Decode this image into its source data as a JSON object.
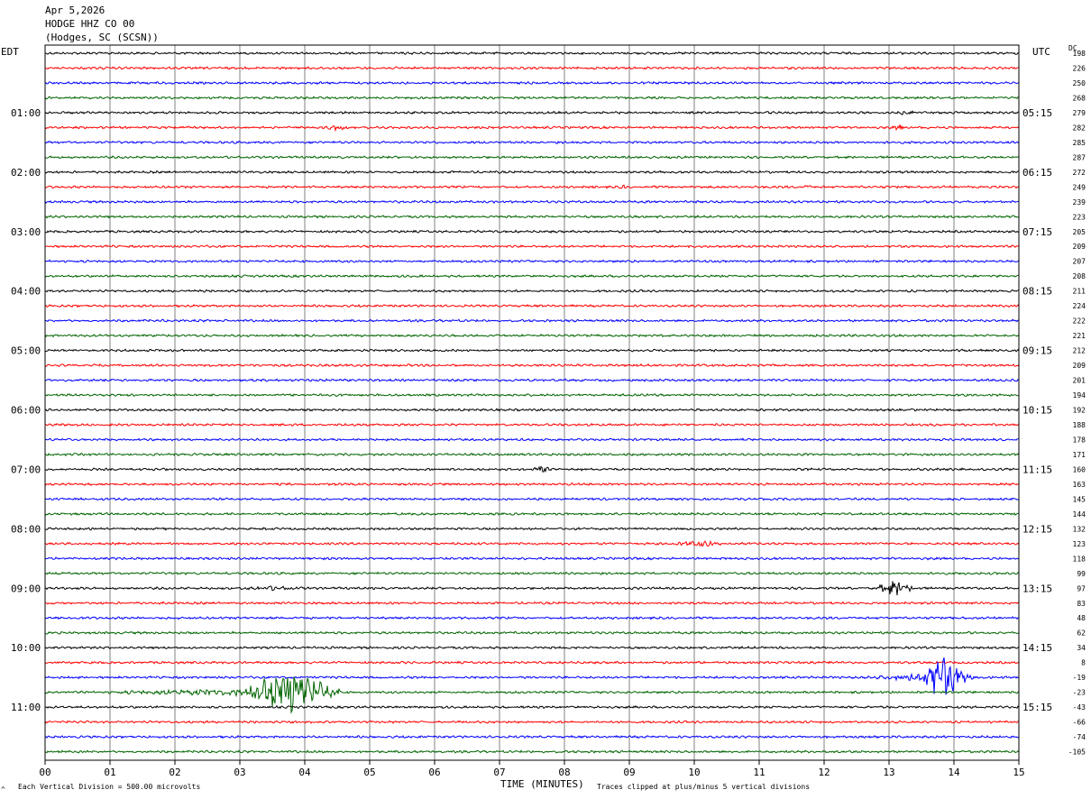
{
  "header": {
    "date": "Apr 5,2026",
    "channel": "HODGE HHZ CO 00",
    "location": "(Hodges, SC (SCSN))"
  },
  "left_zone": "EDT",
  "right_zone": "UTC",
  "dc_header": "DC",
  "footer": {
    "scale": "Each Vertical Division =  500.00 microvolts",
    "clip": "Traces clipped at plus/minus 5 vertical divisions",
    "corner_mark": "^"
  },
  "colors": {
    "trace_cycle": [
      "#000000",
      "#ff0000",
      "#0000ff",
      "#006400"
    ],
    "grid": "#808080",
    "frame": "#000000"
  },
  "chart_data": {
    "type": "line",
    "subtype": "helicorder",
    "xlabel": "TIME (MINUTES)",
    "xlim": [
      0,
      15
    ],
    "x_ticks": [
      "00",
      "01",
      "02",
      "03",
      "04",
      "05",
      "06",
      "07",
      "08",
      "09",
      "10",
      "11",
      "12",
      "13",
      "14",
      "15"
    ],
    "row_count": 48,
    "minutes_per_row": 15,
    "left_time_labels": [
      {
        "row": 4,
        "label": "01:00"
      },
      {
        "row": 8,
        "label": "02:00"
      },
      {
        "row": 12,
        "label": "03:00"
      },
      {
        "row": 16,
        "label": "04:00"
      },
      {
        "row": 20,
        "label": "05:00"
      },
      {
        "row": 24,
        "label": "06:00"
      },
      {
        "row": 28,
        "label": "07:00"
      },
      {
        "row": 32,
        "label": "08:00"
      },
      {
        "row": 36,
        "label": "09:00"
      },
      {
        "row": 40,
        "label": "10:00"
      },
      {
        "row": 44,
        "label": "11:00"
      }
    ],
    "right_time_labels": [
      {
        "row": 4,
        "label": "05:15"
      },
      {
        "row": 8,
        "label": "06:15"
      },
      {
        "row": 12,
        "label": "07:15"
      },
      {
        "row": 16,
        "label": "08:15"
      },
      {
        "row": 20,
        "label": "09:15"
      },
      {
        "row": 24,
        "label": "10:15"
      },
      {
        "row": 28,
        "label": "11:15"
      },
      {
        "row": 32,
        "label": "12:15"
      },
      {
        "row": 36,
        "label": "13:15"
      },
      {
        "row": 40,
        "label": "14:15"
      },
      {
        "row": 44,
        "label": "15:15"
      }
    ],
    "dc_offsets": [
      "198",
      "226",
      "250",
      "268",
      "279",
      "282",
      "285",
      "287",
      "272",
      "249",
      "239",
      "223",
      "205",
      "209",
      "207",
      "208",
      "211",
      "224",
      "222",
      "221",
      "212",
      "209",
      "201",
      "194",
      "192",
      "188",
      "178",
      "171",
      "160",
      "163",
      "145",
      "144",
      "132",
      "123",
      "118",
      "99",
      "97",
      "83",
      "48",
      "62",
      "34",
      "8",
      "-19",
      "-23",
      "-43",
      "-66",
      "-74",
      "-105"
    ],
    "noise_amplitude_div": 0.12,
    "events": [
      {
        "row": 4,
        "start_min": 13.0,
        "end_min": 13.5,
        "amp_div": 0.3
      },
      {
        "row": 5,
        "start_min": 4.2,
        "end_min": 4.8,
        "amp_div": 0.35
      },
      {
        "row": 5,
        "start_min": 13.0,
        "end_min": 13.3,
        "amp_div": 0.35
      },
      {
        "row": 9,
        "start_min": 8.8,
        "end_min": 9.0,
        "amp_div": 0.3
      },
      {
        "row": 9,
        "start_min": 11.6,
        "end_min": 11.9,
        "amp_div": 0.3
      },
      {
        "row": 28,
        "start_min": 7.4,
        "end_min": 7.9,
        "amp_div": 0.4
      },
      {
        "row": 33,
        "start_min": 9.4,
        "end_min": 10.8,
        "amp_div": 0.35
      },
      {
        "row": 36,
        "start_min": 2.5,
        "end_min": 4.5,
        "amp_div": 0.25
      },
      {
        "row": 36,
        "start_min": 12.7,
        "end_min": 13.5,
        "amp_div": 0.9
      },
      {
        "row": 42,
        "start_min": 12.0,
        "end_min": 15.0,
        "amp_div": 0.35
      },
      {
        "row": 42,
        "start_min": 13.3,
        "end_min": 14.3,
        "amp_div": 2.4
      },
      {
        "row": 43,
        "start_min": 0.0,
        "end_min": 5.0,
        "amp_div": 0.35
      },
      {
        "row": 43,
        "start_min": 2.9,
        "end_min": 4.6,
        "amp_div": 2.6
      }
    ]
  }
}
